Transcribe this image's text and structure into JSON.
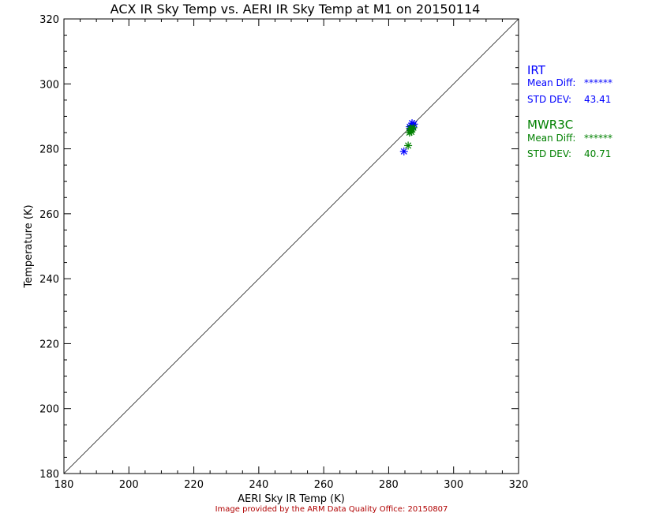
{
  "chart_data": {
    "type": "scatter",
    "title": "ACX IR Sky Temp vs. AERI IR Sky Temp at M1 on 20150114",
    "xlabel": "AERI Sky IR Temp (K)",
    "ylabel": "Temperature (K)",
    "xlim": [
      180,
      320
    ],
    "ylim": [
      180,
      320
    ],
    "xticks": [
      "180",
      "200",
      "220",
      "240",
      "260",
      "280",
      "300",
      "320"
    ],
    "yticks": [
      "180",
      "200",
      "220",
      "240",
      "260",
      "280",
      "300",
      "320"
    ],
    "reference_line": "y = x",
    "marker": "asterisk",
    "series": [
      {
        "name": "IRT",
        "color": "#0000ff",
        "x": [
          284.7,
          286.5,
          287.0,
          287.5,
          287.8,
          287.2,
          286.8
        ],
        "y": [
          279.2,
          286.8,
          286.5,
          287.0,
          287.6,
          287.9,
          286.2
        ]
      },
      {
        "name": "MWR3C",
        "color": "#008000",
        "x": [
          286.0,
          286.4,
          286.8,
          287.2,
          287.6,
          287.0,
          286.6
        ],
        "y": [
          281.0,
          285.0,
          285.6,
          286.0,
          286.5,
          285.2,
          286.3
        ]
      }
    ],
    "stats": [
      {
        "label": "IRT",
        "mean_label": "Mean Diff:",
        "mean_value": "******",
        "std_label": "STD DEV:",
        "std_value": "43.41",
        "color": "#0000ff"
      },
      {
        "label": "MWR3C",
        "mean_label": "Mean Diff:",
        "mean_value": "******",
        "std_label": "STD DEV:",
        "std_value": "40.71",
        "color": "#008000"
      }
    ],
    "footer": "Image provided by the ARM Data Quality Office: 20150807",
    "footer_color": "#b00000"
  }
}
